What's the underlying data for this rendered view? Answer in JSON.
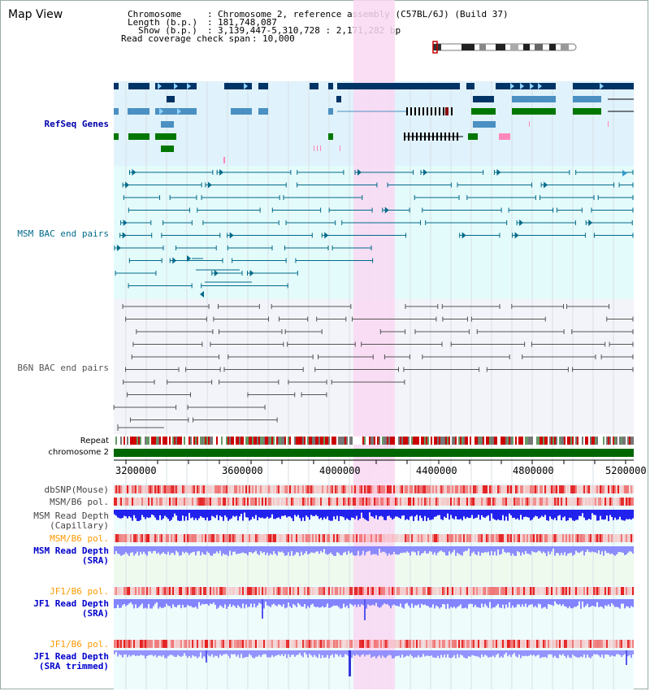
{
  "panel": {
    "title": "Map View"
  },
  "info": {
    "chromosome_key": "Chromosome",
    "chromosome_val": "Chromosome 2, reference assembly (C57BL/6J) (Build 37)",
    "length_key": "Length (b.p.)",
    "length_val": "181,748,087",
    "show_key": "Show (b.p.)",
    "show_val": "3,139,447-5,310,728 : 2,171,282 bp",
    "span_key": "Read coverage check span",
    "span_val": "10,000"
  },
  "tracks": {
    "refseq": {
      "label": "RefSeq Genes",
      "color": "#0000aa"
    },
    "msm_bac": {
      "label": "MSM BAC end pairs",
      "color": "#006a8a"
    },
    "b6n_bac": {
      "label": "B6N BAC end pairs",
      "color": "#555555"
    },
    "repeat": {
      "label": "Repeat"
    },
    "chrom": {
      "label": "chromosome 2"
    },
    "dbsnp": {
      "label": "dbSNP(Mouse)"
    },
    "msm_b6_pol_1": {
      "label": "MSM/B6 pol."
    },
    "msm_depth_cap": {
      "label1": "MSM Read Depth",
      "label2": "(Capillary)"
    },
    "msm_b6_pol_2": {
      "label": "MSM/B6 pol.",
      "color": "#ff9900"
    },
    "msm_depth_sra": {
      "label1": "MSM Read Depth",
      "label2": "(SRA)",
      "color": "#0000cc"
    },
    "jf1_b6_pol_1": {
      "label": "JF1/B6 pol.",
      "color": "#ff9900"
    },
    "jf1_depth_sra": {
      "label1": "JF1 Read Depth",
      "label2": "(SRA)",
      "color": "#0000cc"
    },
    "jf1_b6_pol_2": {
      "label": "JF1/B6 pol.",
      "color": "#ff9900"
    },
    "jf1_depth_trim": {
      "label1": "JF1 Read Depth",
      "label2": "(SRA trimmed)",
      "color": "#0000cc"
    }
  },
  "axis": {
    "ticks": [
      "3200000",
      "3600000",
      "4000000",
      "4400000",
      "4800000",
      "5200000"
    ]
  },
  "colors": {
    "highlight": "#f9d8f2",
    "refseq_bg": "#e0f2fb",
    "msm_bg": "#e4fbfb",
    "b6n_bg": "#f3f4fa",
    "refseq_dark": "#003366",
    "refseq_mid": "#4a90c2",
    "refseq_green": "#007700",
    "msm_line": "#006a8a",
    "b6n_line": "#555555",
    "chrom_green": "#006600",
    "depth_blue": "#3333ee",
    "depth_light": "#8888ff"
  }
}
